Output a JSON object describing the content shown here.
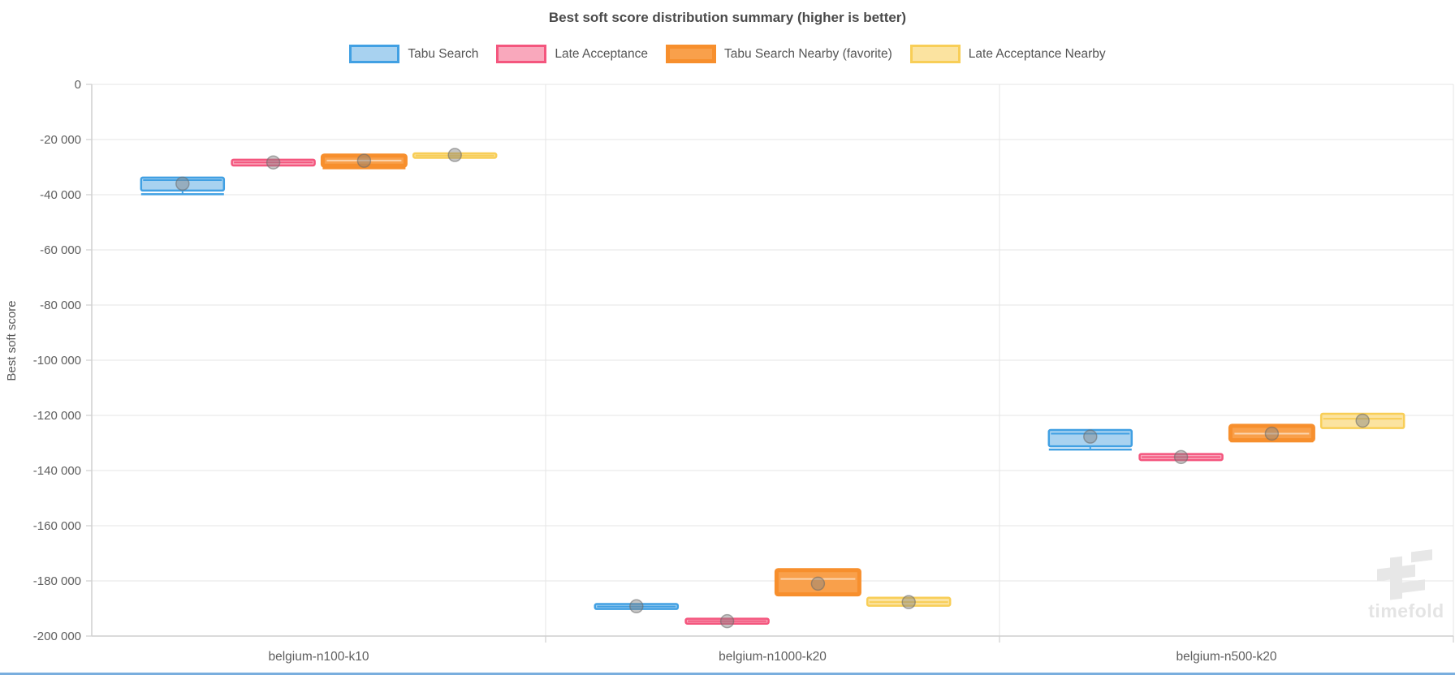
{
  "chart_data": {
    "type": "boxplot",
    "title": "Best soft score distribution summary (higher is better)",
    "ylabel": "Best soft score",
    "watermark": "timefold",
    "ylim": [
      -200000,
      0
    ],
    "grid": true,
    "legend_position": "top",
    "ytick_values": [
      0,
      -20000,
      -40000,
      -60000,
      -80000,
      -100000,
      -120000,
      -140000,
      -160000,
      -180000,
      -200000
    ],
    "ytick_labels": [
      "0",
      "-20 000",
      "-40 000",
      "-60 000",
      "-80 000",
      "-100 000",
      "-120 000",
      "-140 000",
      "-160 000",
      "-180 000",
      "-200 000"
    ],
    "categories": [
      "belgium-n100-k10",
      "belgium-n1000-k20",
      "belgium-n500-k20"
    ],
    "series": [
      {
        "name": "Tabu Search",
        "favorite": false,
        "border_color": "#41a0e3",
        "fill_color": "#a8d2f0",
        "boxes": [
          {
            "min": -39800,
            "q1": -38500,
            "median": -34700,
            "q3": -33800,
            "max": -33800,
            "mean": -36000
          },
          {
            "min": -190200,
            "q1": -190200,
            "median": -189300,
            "q3": -188400,
            "max": -188400,
            "mean": -189200
          },
          {
            "min": -132400,
            "q1": -131200,
            "median": -126600,
            "q3": -125300,
            "max": -125300,
            "mean": -127700
          }
        ]
      },
      {
        "name": "Late Acceptance",
        "favorite": false,
        "border_color": "#f4567e",
        "fill_color": "#f9a8bc",
        "boxes": [
          {
            "min": -29400,
            "q1": -29400,
            "median": -28300,
            "q3": -27300,
            "max": -27300,
            "mean": -28300
          },
          {
            "min": -195500,
            "q1": -195500,
            "median": -194600,
            "q3": -193700,
            "max": -193700,
            "mean": -194600
          },
          {
            "min": -136200,
            "q1": -136200,
            "median": -135100,
            "q3": -134000,
            "max": -134000,
            "mean": -135100
          }
        ]
      },
      {
        "name": "Tabu Search Nearby (favorite)",
        "favorite": true,
        "border_color": "#f78f2d",
        "fill_color": "#f9a04b",
        "boxes": [
          {
            "min": -30400,
            "q1": -29500,
            "median": -27600,
            "q3": -25800,
            "max": -25800,
            "mean": -27700
          },
          {
            "min": -185000,
            "q1": -184900,
            "median": -179300,
            "q3": -176100,
            "max": -176100,
            "mean": -181000
          },
          {
            "min": -129400,
            "q1": -129000,
            "median": -126600,
            "q3": -123800,
            "max": -123800,
            "mean": -126600
          }
        ]
      },
      {
        "name": "Late Acceptance Nearby",
        "favorite": false,
        "border_color": "#f8ce57",
        "fill_color": "#fbe3a0",
        "boxes": [
          {
            "min": -26600,
            "q1": -26600,
            "median": -25800,
            "q3": -25000,
            "max": -25000,
            "mean": -25600
          },
          {
            "min": -189000,
            "q1": -189000,
            "median": -187700,
            "q3": -186100,
            "max": -186100,
            "mean": -187700
          },
          {
            "min": -124600,
            "q1": -124600,
            "median": -121200,
            "q3": -119400,
            "max": -119400,
            "mean": -121900
          }
        ]
      }
    ]
  }
}
